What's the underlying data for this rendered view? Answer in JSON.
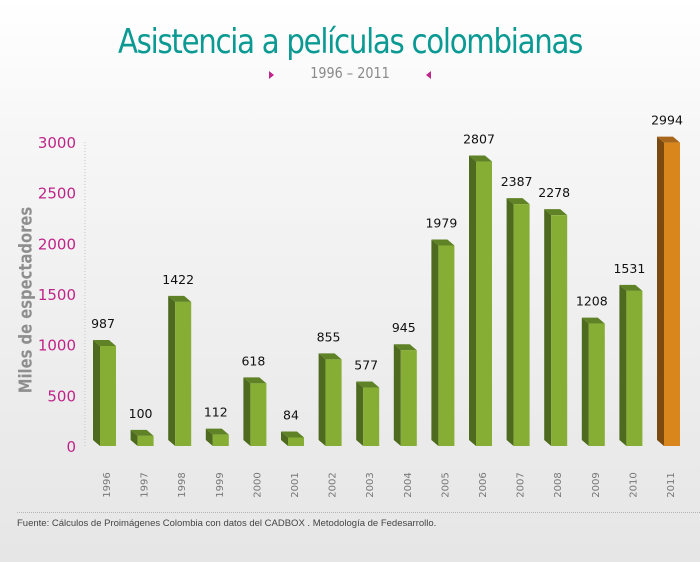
{
  "chart_data": {
    "type": "bar",
    "title": "Asistencia a películas colombianas",
    "subtitle": "1996 – 2011",
    "xlabel": "",
    "ylabel": "Miles de espectadores",
    "ylim": [
      0,
      3000
    ],
    "yticks": [
      0,
      500,
      1000,
      1500,
      2000,
      2500,
      3000
    ],
    "grid": false,
    "categories": [
      "1996",
      "1997",
      "1998",
      "1999",
      "2000",
      "2001",
      "2002",
      "2003",
      "2004",
      "2005",
      "2006",
      "2007",
      "2008",
      "2009",
      "2010",
      "2011"
    ],
    "values": [
      987,
      100,
      1422,
      112,
      618,
      84,
      855,
      577,
      945,
      1979,
      2807,
      2387,
      2278,
      1208,
      1531,
      2994
    ],
    "highlight_index": 15,
    "colors": {
      "bar_front": "#86ad34",
      "bar_side": "#4d6a1e",
      "bar_top": "#5f8226",
      "highlight_front": "#d9861c",
      "highlight_side": "#7b4a10",
      "highlight_top": "#a8661a",
      "ytick_label": "#c0238a",
      "title": "#0b9a93"
    }
  },
  "footer": {
    "source": "Fuente: Cálculos de Proimágenes Colombia con datos del CADBOX . Metodología de Fedesarrollo."
  }
}
